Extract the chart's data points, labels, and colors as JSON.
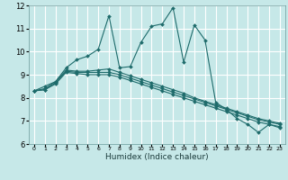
{
  "xlabel": "Humidex (Indice chaleur)",
  "background_color": "#c6e8e8",
  "grid_color": "#ffffff",
  "line_color": "#1e6b6b",
  "xlim": [
    -0.5,
    23.5
  ],
  "ylim": [
    6,
    12
  ],
  "xticks": [
    0,
    1,
    2,
    3,
    4,
    5,
    6,
    7,
    8,
    9,
    10,
    11,
    12,
    13,
    14,
    15,
    16,
    17,
    18,
    19,
    20,
    21,
    22,
    23
  ],
  "yticks": [
    6,
    7,
    8,
    9,
    10,
    11,
    12
  ],
  "series1_x": [
    0,
    1,
    2,
    3,
    4,
    5,
    6,
    7,
    8,
    9,
    10,
    11,
    12,
    13,
    14,
    15,
    16,
    17,
    18,
    19,
    20,
    21,
    22,
    23
  ],
  "series1_y": [
    8.3,
    8.5,
    8.7,
    9.3,
    9.65,
    9.8,
    10.1,
    11.55,
    9.3,
    9.35,
    10.4,
    11.1,
    11.2,
    11.9,
    9.55,
    11.15,
    10.5,
    7.8,
    7.5,
    7.1,
    6.85,
    6.5,
    6.85,
    6.7
  ],
  "series2_x": [
    0,
    1,
    2,
    3,
    4,
    5,
    6,
    7,
    8,
    9,
    10,
    11,
    12,
    13,
    14,
    15,
    16,
    17,
    18,
    19,
    20,
    21,
    22,
    23
  ],
  "series2_y": [
    8.3,
    8.4,
    8.7,
    9.2,
    9.15,
    9.15,
    9.2,
    9.25,
    9.1,
    8.95,
    8.8,
    8.65,
    8.5,
    8.35,
    8.2,
    8.0,
    7.85,
    7.7,
    7.55,
    7.4,
    7.25,
    7.1,
    7.0,
    6.9
  ],
  "series3_x": [
    0,
    1,
    2,
    3,
    4,
    5,
    6,
    7,
    8,
    9,
    10,
    11,
    12,
    13,
    14,
    15,
    16,
    17,
    18,
    19,
    20,
    21,
    22,
    23
  ],
  "series3_y": [
    8.3,
    8.35,
    8.65,
    9.15,
    9.1,
    9.1,
    9.1,
    9.1,
    9.0,
    8.85,
    8.7,
    8.55,
    8.4,
    8.25,
    8.1,
    7.95,
    7.8,
    7.65,
    7.5,
    7.35,
    7.2,
    7.05,
    6.95,
    6.85
  ],
  "series4_x": [
    0,
    1,
    2,
    3,
    4,
    5,
    6,
    7,
    8,
    9,
    10,
    11,
    12,
    13,
    14,
    15,
    16,
    17,
    18,
    19,
    20,
    21,
    22,
    23
  ],
  "series4_y": [
    8.3,
    8.35,
    8.6,
    9.1,
    9.05,
    9.0,
    9.0,
    9.0,
    8.9,
    8.75,
    8.6,
    8.45,
    8.3,
    8.15,
    8.0,
    7.85,
    7.7,
    7.55,
    7.4,
    7.25,
    7.1,
    6.95,
    6.85,
    6.75
  ]
}
